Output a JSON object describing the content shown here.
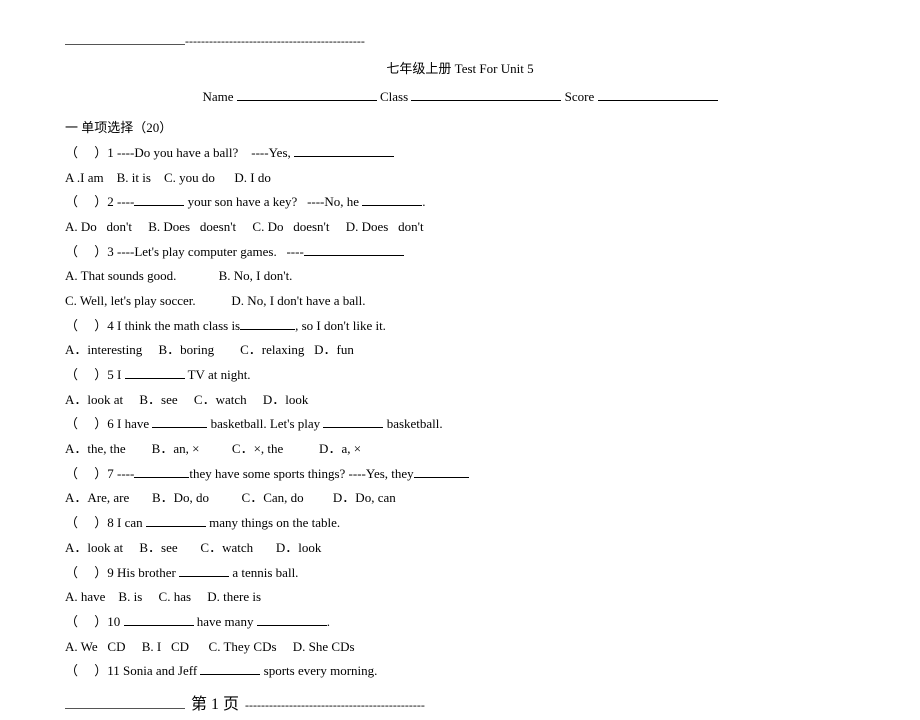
{
  "header": {
    "dashes_top": "---------------------------------------------",
    "title": "七年级上册 Test For Unit 5",
    "name_label": "Name",
    "class_label": "Class",
    "score_label": "Score"
  },
  "section": {
    "heading": "一 单项选择（20）"
  },
  "q1": {
    "stem_a": "（     ）1 ----Do you have a ball?    ----Yes,",
    "opts": "A .I am    B. it is    C. you do      D. I do"
  },
  "q2": {
    "stem_a": "（     ）2 ----",
    "stem_b": " your son have a key?   ----No, he ",
    "stem_c": ".",
    "opts": "A. Do   don't     B. Does   doesn't     C. Do   doesn't     D. Does   don't"
  },
  "q3": {
    "stem_a": "（     ）3 ----Let's play computer games.   ----",
    "opts1": "A. That sounds good.             B. No, I don't.",
    "opts2": "C. Well, let's play soccer.           D. No, I don't have a ball."
  },
  "q4": {
    "stem_a": "（     ）4 I think the math class is",
    "stem_b": ", so I don't like it.",
    "opts": "A．interesting     B．boring        C．relaxing   D．fun"
  },
  "q5": {
    "stem_a": "（     ）5 I ",
    "stem_b": " TV at night.",
    "opts": "A．look at     B．see     C．watch     D．look"
  },
  "q6": {
    "stem_a": "（     ）6 I have ",
    "stem_b": " basketball. Let's play ",
    "stem_c": " basketball.",
    "opts": "A．the, the        B．an, ×          C．×, the           D．a, ×"
  },
  "q7": {
    "stem_a": "（     ）7 ----",
    "stem_b": "they have some sports things? ----Yes, they",
    "opts": "A．Are, are       B．Do, do          C．Can, do         D．Do, can"
  },
  "q8": {
    "stem_a": "（     ）8 I can ",
    "stem_b": " many things on the table.",
    "opts": "A．look at     B．see       C．watch       D．look"
  },
  "q9": {
    "stem_a": "（     ）9 His brother ",
    "stem_b": " a tennis ball.",
    "opts": "A. have    B. is     C. has     D. there is"
  },
  "q10": {
    "stem_a": "（     ）10 ",
    "stem_b": " have many ",
    "stem_c": ".",
    "opts": "A. We   CD     B. I   CD      C. They CDs     D. She CDs"
  },
  "q11": {
    "stem_a": "（     ）11 Sonia and Jeff ",
    "stem_b": " sports every morning."
  },
  "footer": {
    "page_label": "第 1 页",
    "dashes_bottom": "---------------------------------------------"
  }
}
